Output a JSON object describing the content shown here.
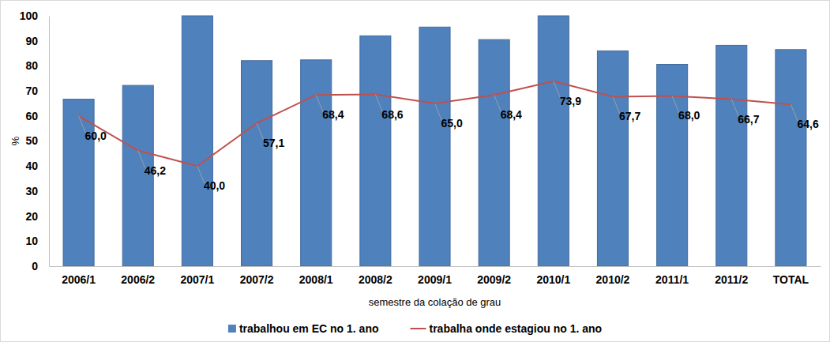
{
  "chart_data": {
    "type": "bar",
    "x_label": "semestre da colação de grau",
    "y_label": "%",
    "categories": [
      "2006/1",
      "2006/2",
      "2007/1",
      "2007/2",
      "2008/1",
      "2008/2",
      "2009/1",
      "2009/2",
      "2010/1",
      "2010/2",
      "2011/1",
      "2011/2",
      "TOTAL"
    ],
    "series": [
      {
        "name": "trabalhou em EC no 1. ano",
        "type": "bar",
        "color": "#4f81bd",
        "values": [
          66.7,
          72.2,
          100,
          82.1,
          82.4,
          92.0,
          95.5,
          90.5,
          100,
          86.0,
          80.6,
          88.2,
          86.5
        ]
      },
      {
        "name": "trabalha onde estagiou no 1. ano",
        "type": "line",
        "color": "#c0504d",
        "data_labels": true,
        "values": [
          60.0,
          46.2,
          40.0,
          57.1,
          68.4,
          68.6,
          65.0,
          68.4,
          73.9,
          67.7,
          68.0,
          66.7,
          64.6
        ],
        "value_labels": [
          "60,0",
          "46,2",
          "40,0",
          "57,1",
          "68,4",
          "68,6",
          "65,0",
          "68,4",
          "73,9",
          "67,7",
          "68,0",
          "66,7",
          "64,6"
        ]
      }
    ],
    "ylim": [
      0,
      100
    ],
    "yticks": [
      0,
      10,
      20,
      30,
      40,
      50,
      60,
      70,
      80,
      90,
      100
    ],
    "grid": false,
    "legend": "bottom"
  }
}
